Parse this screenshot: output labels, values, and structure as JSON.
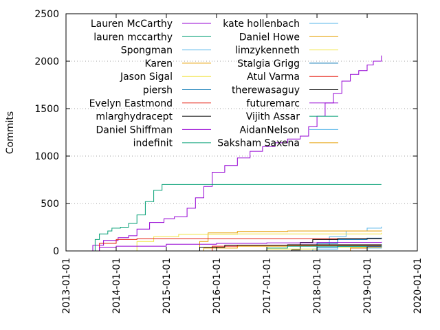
{
  "chart_data": {
    "type": "line",
    "title": "",
    "xlabel": "",
    "ylabel": "Commits",
    "xlim": [
      "2013-01-01",
      "2020-01-01"
    ],
    "ylim": [
      0,
      2500
    ],
    "x_ticks": [
      "2013-01-01",
      "2014-01-01",
      "2015-01-01",
      "2016-01-01",
      "2017-01-01",
      "2018-01-01",
      "2019-01-01",
      "2020-01-01"
    ],
    "y_ticks": [
      0,
      500,
      1000,
      1500,
      2000,
      2500
    ],
    "grid": "horizontal dotted",
    "legend_placement": "top, two columns",
    "series": [
      {
        "name": "Lauren McCarthy",
        "color": "#9400d3",
        "points": [
          [
            "2013-06-01",
            0
          ],
          [
            "2013-07-15",
            60
          ],
          [
            "2013-10-01",
            110
          ],
          [
            "2014-01-15",
            140
          ],
          [
            "2014-04-01",
            160
          ],
          [
            "2014-06-01",
            230
          ],
          [
            "2014-09-01",
            300
          ],
          [
            "2014-12-15",
            340
          ],
          [
            "2015-03-01",
            360
          ],
          [
            "2015-06-01",
            450
          ],
          [
            "2015-08-01",
            560
          ],
          [
            "2015-10-01",
            680
          ],
          [
            "2015-12-01",
            830
          ],
          [
            "2016-03-01",
            900
          ],
          [
            "2016-06-01",
            980
          ],
          [
            "2016-09-01",
            1050
          ],
          [
            "2016-12-01",
            1100
          ],
          [
            "2017-03-01",
            1140
          ],
          [
            "2017-06-01",
            1180
          ],
          [
            "2017-09-01",
            1210
          ],
          [
            "2017-11-01",
            1310
          ],
          [
            "2018-01-01",
            1420
          ],
          [
            "2018-03-01",
            1560
          ],
          [
            "2018-05-01",
            1660
          ],
          [
            "2018-07-01",
            1790
          ],
          [
            "2018-09-01",
            1860
          ],
          [
            "2018-11-01",
            1900
          ],
          [
            "2019-01-01",
            1960
          ],
          [
            "2019-02-15",
            2000
          ],
          [
            "2019-04-15",
            2060
          ]
        ]
      },
      {
        "name": "lauren mccarthy",
        "color": "#009e73",
        "points": [
          [
            "2013-06-01",
            0
          ],
          [
            "2019-04-15",
            0
          ]
        ]
      },
      {
        "name": "Spongman",
        "color": "#56b4e9",
        "points": [
          [
            "2016-01-01",
            0
          ],
          [
            "2017-09-01",
            0
          ],
          [
            "2018-01-01",
            60
          ],
          [
            "2018-04-01",
            150
          ],
          [
            "2018-08-01",
            210
          ],
          [
            "2019-01-01",
            240
          ],
          [
            "2019-04-15",
            255
          ]
        ]
      },
      {
        "name": "Karen",
        "color": "#e69f00",
        "points": [
          [
            "2015-06-01",
            0
          ],
          [
            "2015-09-01",
            100
          ],
          [
            "2015-11-01",
            190
          ],
          [
            "2016-06-01",
            205
          ],
          [
            "2017-06-01",
            210
          ],
          [
            "2019-04-15",
            215
          ]
        ]
      },
      {
        "name": "Jason Sigal",
        "color": "#f0e442",
        "points": [
          [
            "2014-03-01",
            0
          ],
          [
            "2014-06-01",
            100
          ],
          [
            "2014-10-01",
            150
          ],
          [
            "2015-04-01",
            175
          ],
          [
            "2016-06-01",
            180
          ],
          [
            "2019-04-15",
            190
          ]
        ]
      },
      {
        "name": "piersh",
        "color": "#0072b2",
        "points": [
          [
            "2016-01-01",
            0
          ],
          [
            "2017-10-01",
            0
          ],
          [
            "2018-01-01",
            80
          ],
          [
            "2018-06-01",
            120
          ],
          [
            "2019-01-01",
            135
          ],
          [
            "2019-04-15",
            140
          ]
        ]
      },
      {
        "name": "Evelyn Eastmond",
        "color": "#e51e10",
        "points": [
          [
            "2013-06-01",
            0
          ],
          [
            "2013-09-01",
            80
          ],
          [
            "2014-01-01",
            120
          ],
          [
            "2014-06-01",
            130
          ],
          [
            "2015-01-01",
            130
          ],
          [
            "2019-04-15",
            130
          ]
        ]
      },
      {
        "name": "mlarghydracept",
        "color": "#000000",
        "points": [
          [
            "2017-01-01",
            0
          ],
          [
            "2017-07-01",
            10
          ],
          [
            "2017-09-01",
            90
          ],
          [
            "2017-12-01",
            120
          ],
          [
            "2018-06-01",
            130
          ],
          [
            "2019-04-15",
            135
          ]
        ]
      },
      {
        "name": "Daniel Shiffman",
        "color": "#9400d3",
        "points": [
          [
            "2013-06-01",
            0
          ],
          [
            "2013-09-01",
            40
          ],
          [
            "2014-01-01",
            50
          ],
          [
            "2015-01-01",
            70
          ],
          [
            "2016-01-01",
            80
          ],
          [
            "2017-01-01",
            85
          ],
          [
            "2018-01-01",
            90
          ],
          [
            "2019-04-15",
            95
          ]
        ]
      },
      {
        "name": "indefinit",
        "color": "#009e73",
        "points": [
          [
            "2013-07-01",
            0
          ],
          [
            "2013-08-01",
            120
          ],
          [
            "2013-09-01",
            180
          ],
          [
            "2013-11-01",
            210
          ],
          [
            "2013-12-01",
            240
          ],
          [
            "2014-02-01",
            250
          ],
          [
            "2014-04-01",
            290
          ],
          [
            "2014-06-01",
            380
          ],
          [
            "2014-08-01",
            520
          ],
          [
            "2014-10-01",
            640
          ],
          [
            "2014-12-01",
            700
          ],
          [
            "2015-06-01",
            700
          ],
          [
            "2019-04-15",
            700
          ]
        ]
      },
      {
        "name": "kate hollenbach",
        "color": "#56b4e9",
        "points": [
          [
            "2017-06-01",
            0
          ],
          [
            "2017-12-01",
            20
          ],
          [
            "2018-06-01",
            45
          ],
          [
            "2019-04-15",
            60
          ]
        ]
      },
      {
        "name": "Daniel Howe",
        "color": "#e69f00",
        "points": [
          [
            "2015-06-01",
            0
          ],
          [
            "2015-10-01",
            30
          ],
          [
            "2016-06-01",
            50
          ],
          [
            "2017-06-01",
            55
          ],
          [
            "2019-04-15",
            60
          ]
        ]
      },
      {
        "name": "limzykenneth",
        "color": "#f0e442",
        "points": [
          [
            "2016-09-01",
            0
          ],
          [
            "2017-01-01",
            20
          ],
          [
            "2018-01-01",
            40
          ],
          [
            "2019-04-15",
            60
          ]
        ]
      },
      {
        "name": "Stalgia Grigg",
        "color": "#0072b2",
        "points": [
          [
            "2017-09-01",
            0
          ],
          [
            "2018-01-01",
            40
          ],
          [
            "2018-06-01",
            60
          ],
          [
            "2019-04-15",
            70
          ]
        ]
      },
      {
        "name": "Atul Varma",
        "color": "#e51e10",
        "points": [
          [
            "2015-09-01",
            0
          ],
          [
            "2015-12-01",
            50
          ],
          [
            "2016-06-01",
            60
          ],
          [
            "2019-04-15",
            60
          ]
        ]
      },
      {
        "name": "therewasaguy",
        "color": "#000000",
        "points": [
          [
            "2015-06-01",
            0
          ],
          [
            "2015-09-01",
            40
          ],
          [
            "2016-03-01",
            60
          ],
          [
            "2017-06-01",
            65
          ],
          [
            "2019-04-15",
            65
          ]
        ]
      },
      {
        "name": "futuremarc",
        "color": "#9400d3",
        "points": [
          [
            "2018-06-01",
            0
          ],
          [
            "2018-09-01",
            30
          ],
          [
            "2019-01-01",
            45
          ],
          [
            "2019-04-15",
            50
          ]
        ]
      },
      {
        "name": "Vijith Assar",
        "color": "#009e73",
        "points": [
          [
            "2016-09-01",
            0
          ],
          [
            "2017-01-01",
            30
          ],
          [
            "2017-06-01",
            50
          ],
          [
            "2019-04-15",
            55
          ]
        ]
      },
      {
        "name": "AidanNelson",
        "color": "#56b4e9",
        "points": [
          [
            "2018-09-01",
            0
          ],
          [
            "2019-01-01",
            30
          ],
          [
            "2019-04-15",
            45
          ]
        ]
      },
      {
        "name": "Saksham Saxena",
        "color": "#e69f00",
        "points": [
          [
            "2018-03-01",
            0
          ],
          [
            "2018-09-01",
            30
          ],
          [
            "2019-01-01",
            40
          ],
          [
            "2019-04-15",
            45
          ]
        ]
      }
    ]
  }
}
